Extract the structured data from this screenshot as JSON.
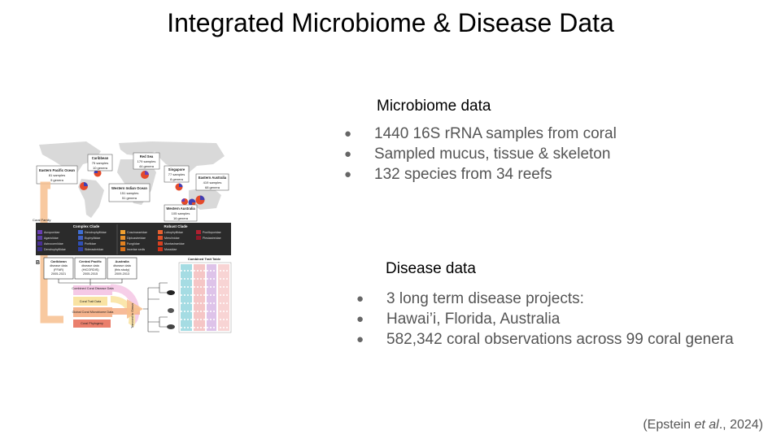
{
  "slide": {
    "title": "Integrated Microbiome & Disease Data",
    "citation": {
      "open": "(Epstein ",
      "etal": "et al",
      "close": "., 2024)"
    }
  },
  "microbiome": {
    "heading": "Microbiome data",
    "bullets": [
      "1440 16S rRNA samples from coral",
      "Sampled mucus, tissue & skeleton",
      "132 species from 34 reefs"
    ]
  },
  "disease": {
    "heading": "Disease data",
    "bullets": [
      "3 long term disease projects:",
      "Hawai’i, Florida, Australia",
      "582,342 coral observations across 99 coral genera"
    ]
  },
  "figure": {
    "panel_a": "A",
    "panel_b": "B",
    "regions": {
      "eastern_pacific": [
        "Eastern Pacific Ocean",
        "81 samples",
        "9 genera"
      ],
      "caribbean": [
        "Caribbean",
        "75 samples",
        "10 genera"
      ],
      "red_sea": [
        "Red Sea",
        "179 samples",
        "44 genera"
      ],
      "singapore": [
        "Singapore",
        "77 samples",
        "8 genera"
      ],
      "eastern_australia": [
        "Eastern Australia",
        "419 samples",
        "68 genera"
      ],
      "western_indian": [
        "Western Indian Ocean",
        "151 samples",
        "51 genera"
      ],
      "western_australia": [
        "Western Australia",
        "105 samples",
        "16 genera"
      ]
    },
    "coral_family_label": "Coral Family",
    "complex_clade": "Complex Clade",
    "robust_clade": "Robust Clade",
    "families_col1": [
      "Acroporidae",
      "Agariciidae",
      "Astrocoeniidae",
      "Dendrophylliidae"
    ],
    "families_col2": [
      "Dendrophylliidae",
      "Euphylliidae",
      "Poritidae",
      "Siderastreidae"
    ],
    "families_col3": [
      "Coscinaraeidae",
      "Diploastreidae",
      "Fungiidae",
      "incertae sedis"
    ],
    "families_col4": [
      "Lobophylliidae",
      "Merulinidae",
      "Montastraeidae",
      "Mussidae"
    ],
    "families_col5": [
      "Pocilloporidae",
      "Plesiastreidae"
    ],
    "data_sources": [
      [
        "Caribbean",
        "disease data",
        "(FFAR)",
        "2005-2021"
      ],
      [
        "Central Pacific",
        "disease data",
        "(HICORDIS)",
        "2005-2015"
      ],
      [
        "Australia",
        "disease data",
        "(this study)",
        "2009-2013"
      ]
    ],
    "flow_boxes": [
      "Combined Coral Disease Data",
      "Coral Trait Data",
      "Global Coral Microbiome Data",
      "Coral Phylogeny"
    ],
    "trimmed_label": "Trimmed to Genus",
    "trait_table_label": "Combined Trait Table",
    "colors": {
      "ocean": "#ffffff",
      "land": "#d9d9d9",
      "legend_bg": "#2b2b2b",
      "flow_orange": "#f7c08f",
      "disease_box": "#f5c9e6",
      "trait_box": "#f9e3a3",
      "microbiome_box": "#f6b48e",
      "phylogeny_box": "#ea7f6c",
      "col_teal": "#8fd3dc",
      "col_pink": "#f3b8b8",
      "col_purple": "#d6b4e3"
    }
  }
}
